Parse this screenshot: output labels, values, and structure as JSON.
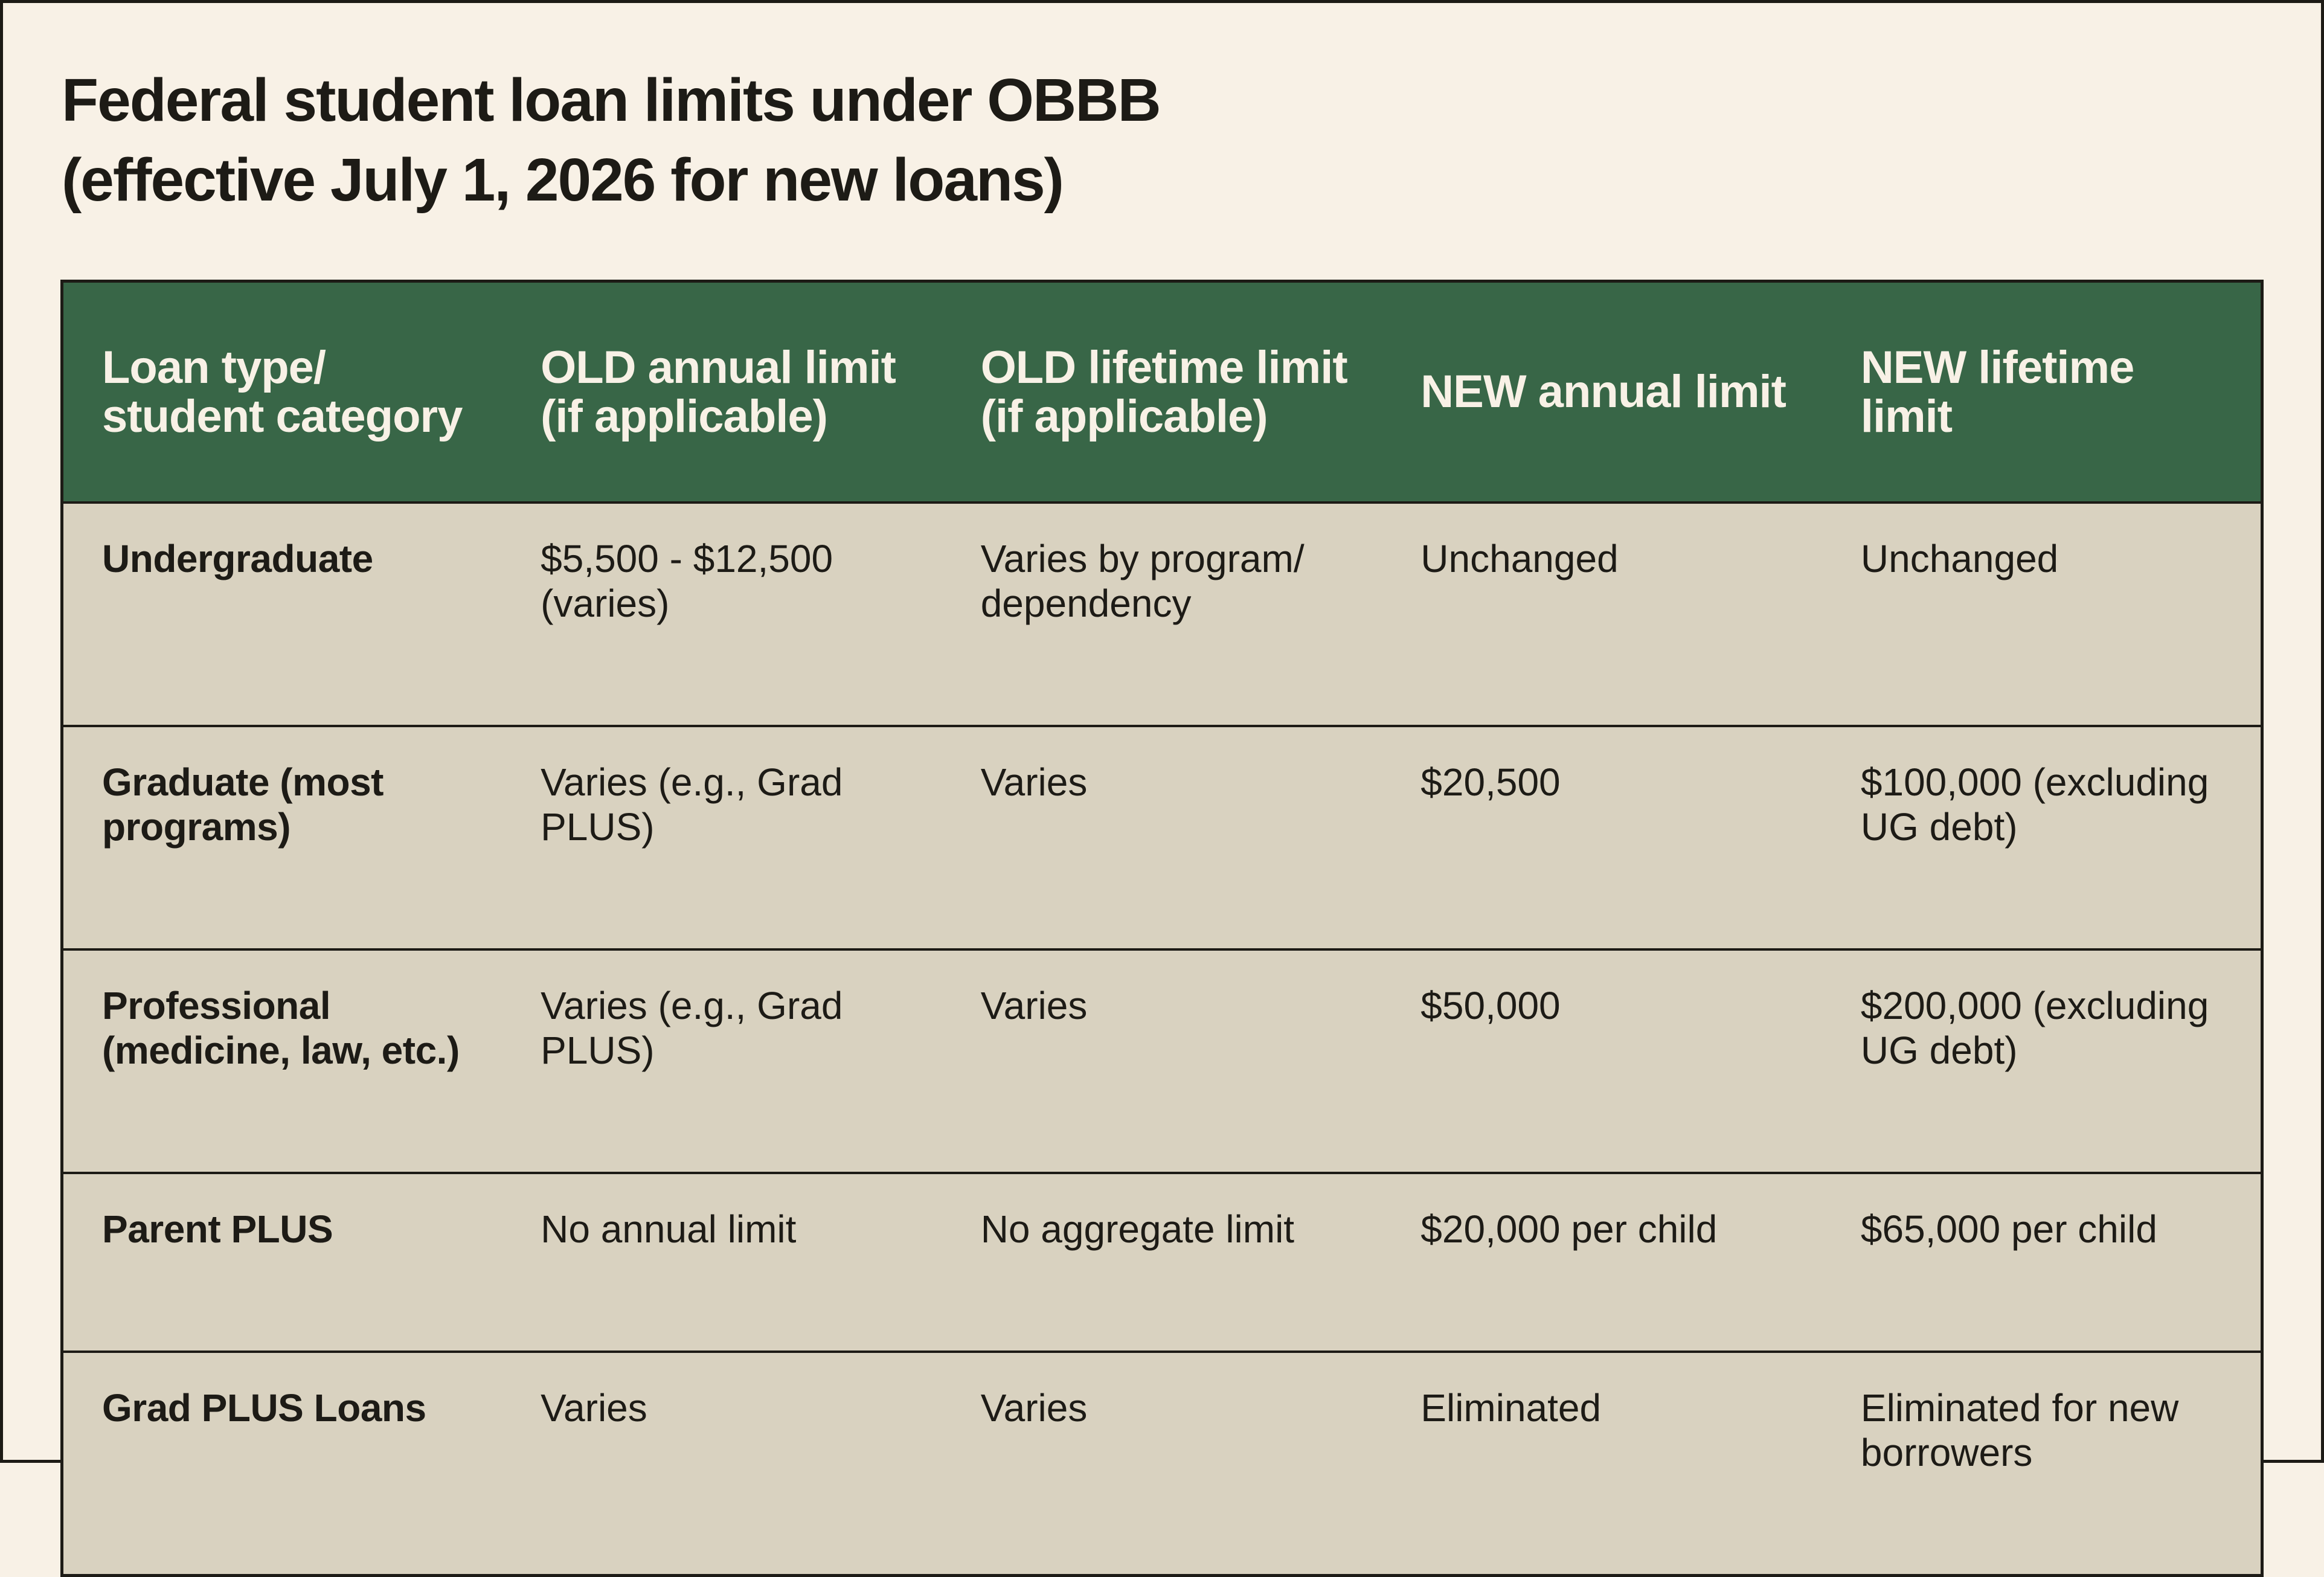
{
  "title": {
    "line1": "Federal student loan limits under OBBB",
    "line2": "(effective July 1, 2026 for new loans)"
  },
  "table": {
    "headers": [
      "Loan type/ student category",
      "OLD annual limit (if applicable)",
      "OLD lifetime limit (if applicable)",
      "NEW annual limit",
      "NEW lifetime limit"
    ],
    "rows": [
      [
        "Undergraduate",
        "$5,500 - $12,500 (varies)",
        "Varies by program/ dependency",
        "Unchanged",
        "Unchanged"
      ],
      [
        "Graduate (most programs)",
        "Varies (e.g., Grad PLUS)",
        "Varies",
        "$20,500",
        "$100,000 (excluding UG debt)"
      ],
      [
        "Professional (medicine, law, etc.)",
        "Varies (e.g., Grad PLUS)",
        "Varies",
        "$50,000",
        "$200,000 (excluding UG debt)"
      ],
      [
        "Parent PLUS",
        "No annual limit",
        "No aggregate limit",
        "$20,000 per child",
        "$65,000 per child"
      ],
      [
        "Grad PLUS Loans",
        "Varies",
        "Varies",
        "Eliminated",
        "Eliminated for new borrowers"
      ]
    ]
  },
  "colors": {
    "background": "#f8f1e6",
    "header_fill": "#386647",
    "header_text": "#f8f1e6",
    "row_fill": "#d9d2c0",
    "border": "#1d1b16",
    "text": "#1d1b16"
  }
}
